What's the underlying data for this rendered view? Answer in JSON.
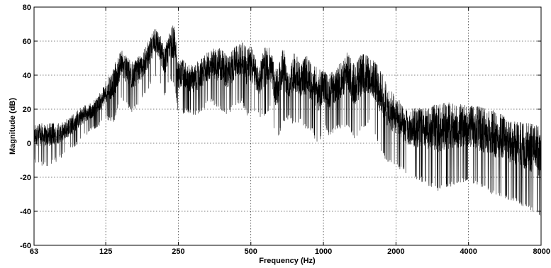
{
  "chart_data": {
    "type": "line",
    "title": "",
    "xlabel": "Frequency (Hz)",
    "ylabel": "Magnitude (dB)",
    "xscale": "log",
    "xlim": [
      63,
      8000
    ],
    "ylim": [
      -60,
      80
    ],
    "xticks": [
      63,
      125,
      250,
      500,
      1000,
      2000,
      4000,
      8000
    ],
    "xticklabels": [
      "63",
      "125",
      "250",
      "500",
      "1000",
      "2000",
      "4000",
      "8000"
    ],
    "yticks": [
      -60,
      -40,
      -20,
      0,
      20,
      40,
      60,
      80
    ],
    "yticklabels": [
      "-60",
      "-40",
      "-20",
      "0",
      "20",
      "40",
      "60",
      "80"
    ],
    "grid": true,
    "line_color": "#000000",
    "series": [
      {
        "envelope": {
          "frequency_hz": [
            63,
            70,
            80,
            90,
            100,
            110,
            118,
            125,
            135,
            145,
            160,
            175,
            185,
            195,
            200,
            210,
            220,
            230,
            240,
            250,
            270,
            290,
            310,
            340,
            370,
            400,
            430,
            460,
            480,
            500,
            540,
            570,
            600,
            640,
            680,
            720,
            760,
            800,
            850,
            900,
            960,
            1000,
            1050,
            1150,
            1250,
            1350,
            1450,
            1550,
            1650,
            1750,
            1850,
            2000,
            2200,
            2500,
            3000,
            3300,
            3600,
            4000,
            5000,
            6000,
            7000,
            8000
          ],
          "max_db": [
            12,
            12,
            12,
            16,
            22,
            24,
            30,
            36,
            46,
            55,
            48,
            52,
            58,
            66,
            70,
            64,
            57,
            67,
            70,
            52,
            47,
            46,
            50,
            55,
            57,
            51,
            57,
            61,
            56,
            58,
            44,
            57,
            56,
            43,
            57,
            41,
            54,
            47,
            52,
            46,
            44,
            43,
            40,
            46,
            54,
            46,
            54,
            51,
            49,
            41,
            34,
            28,
            20,
            21,
            23,
            24,
            23,
            23,
            20,
            14,
            12,
            10
          ],
          "min_db": [
            -12,
            -14,
            -10,
            -4,
            2,
            8,
            10,
            14,
            12,
            26,
            18,
            24,
            30,
            36,
            40,
            34,
            26,
            36,
            34,
            16,
            18,
            16,
            18,
            24,
            20,
            16,
            22,
            24,
            16,
            18,
            16,
            14,
            20,
            0,
            12,
            14,
            10,
            12,
            8,
            6,
            -4,
            10,
            4,
            8,
            10,
            2,
            8,
            12,
            4,
            -6,
            -12,
            -14,
            -18,
            -22,
            -28,
            -26,
            -24,
            -22,
            -30,
            -34,
            -38,
            -44
          ]
        }
      }
    ]
  }
}
